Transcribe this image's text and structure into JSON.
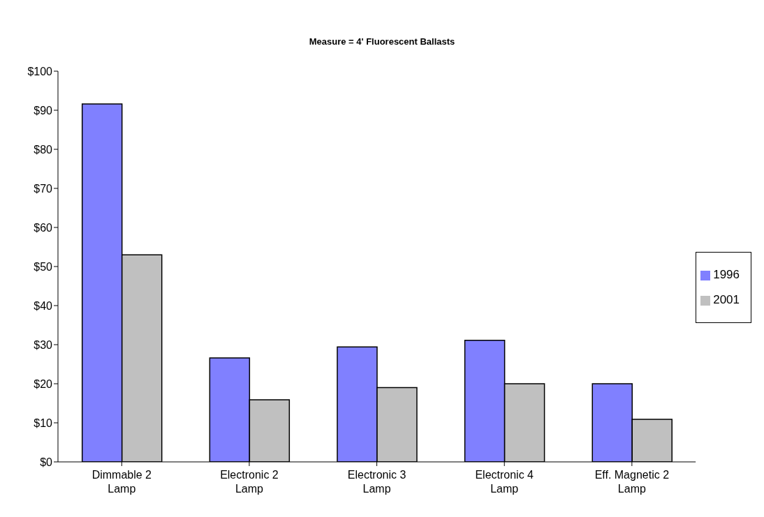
{
  "chart_data": {
    "type": "bar",
    "title": "Measure = 4' Fluorescent Ballasts",
    "categories": [
      "Dimmable 2 Lamp",
      "Electronic 2 Lamp",
      "Electronic 3 Lamp",
      "Electronic 4 Lamp",
      "Eff. Magnetic 2 Lamp"
    ],
    "series": [
      {
        "name": "1996",
        "color": "#8080ff",
        "values": [
          91.6,
          26.6,
          29.4,
          31.1,
          20.0
        ]
      },
      {
        "name": "2001",
        "color": "#c0c0c0",
        "values": [
          53.0,
          15.9,
          19.0,
          20.0,
          10.9
        ]
      }
    ],
    "ylim": [
      0,
      100
    ],
    "yticks": [
      {
        "value": 0,
        "label": "$0"
      },
      {
        "value": 10,
        "label": "$10"
      },
      {
        "value": 20,
        "label": "$20"
      },
      {
        "value": 30,
        "label": "$30"
      },
      {
        "value": 40,
        "label": "$40"
      },
      {
        "value": 50,
        "label": "$50"
      },
      {
        "value": 60,
        "label": "$60"
      },
      {
        "value": 70,
        "label": "$70"
      },
      {
        "value": 80,
        "label": "$80"
      },
      {
        "value": 90,
        "label": "$90"
      },
      {
        "value": 100,
        "label": "$100"
      }
    ],
    "grid": false,
    "legend": "right"
  }
}
